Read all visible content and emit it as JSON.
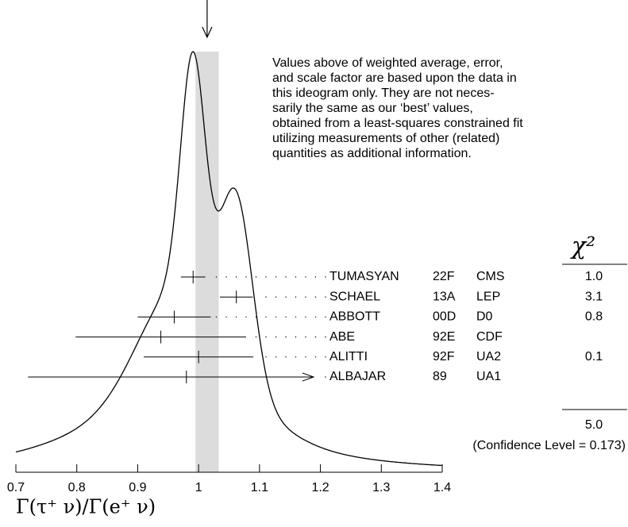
{
  "chart_data": {
    "type": "ideogram",
    "notes": [
      "Values above of weighted average, error,",
      "and scale factor are based upon the data in",
      "this ideogram only.  They are not neces-",
      "sarily the same as our ‘best’ values,",
      "obtained from a least-squares constrained fit",
      "utilizing measurements of other (related)",
      "quantities as additional information."
    ],
    "labels": [
      "TUMASYAN",
      "SCHAEL",
      "ABBOTT",
      "ABE",
      "ALITTI",
      "ALBAJAR"
    ],
    "years": [
      "22F",
      "13A",
      "00D",
      "92E",
      "92F",
      "89"
    ],
    "experiments": [
      "CMS",
      "LEP",
      "D0",
      "CDF",
      "UA2",
      "UA1"
    ],
    "values": [
      0.991,
      1.062,
      0.96,
      0.938,
      1.0,
      0.98
    ],
    "errors": [
      0.02,
      0.027,
      0.06,
      0.14,
      0.09,
      0.26
    ],
    "chi2_label": "χ²",
    "chi2": [
      "1.0",
      "3.1",
      "0.8",
      null,
      "0.1",
      null
    ],
    "chi2_total": "5.0",
    "confidence": "(Confidence Level = 0.173)",
    "weighted_average": {
      "value": 1.014,
      "error": 0.019
    },
    "xlabel": "Γ(τ⁺ ν)/Γ(e⁺ ν)",
    "xlim": [
      0.7,
      1.4
    ],
    "xticks": [
      0.7,
      0.8,
      0.9,
      1,
      1.1,
      1.2,
      1.3,
      1.4
    ]
  }
}
